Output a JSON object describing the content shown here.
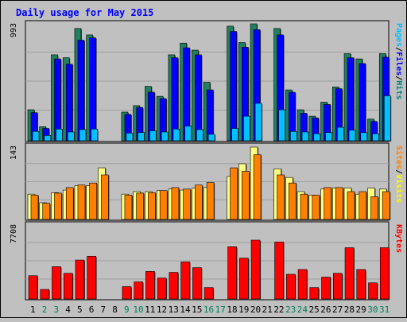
{
  "chart_data": {
    "type": "bar",
    "title": "Daily usage for May 2015",
    "days": [
      "1",
      "2",
      "3",
      "4",
      "5",
      "6",
      "7",
      "8",
      "9",
      "10",
      "11",
      "12",
      "13",
      "14",
      "15",
      "16",
      "17",
      "18",
      "19",
      "20",
      "21",
      "22",
      "23",
      "24",
      "25",
      "26",
      "27",
      "28",
      "29",
      "30",
      "31"
    ],
    "weekend_days": [
      "2",
      "3",
      "9",
      "10",
      "16",
      "17",
      "23",
      "24",
      "30",
      "31"
    ],
    "top_panel": {
      "ymax_label": "993",
      "ymax": 993,
      "legend": [
        {
          "text": "Pages",
          "color": "#00c0ff"
        },
        {
          "text": "/",
          "color": "#000000"
        },
        {
          "text": "Files",
          "color": "#0000ff"
        },
        {
          "text": "/",
          "color": "#000000"
        },
        {
          "text": "Hits",
          "color": "#008080"
        }
      ],
      "series": [
        {
          "name": "Hits",
          "color": "#208060",
          "values": [
            265,
            120,
            735,
            710,
            960,
            905,
            0,
            0,
            245,
            300,
            465,
            380,
            735,
            835,
            775,
            500,
            0,
            980,
            840,
            1000,
            0,
            960,
            435,
            265,
            210,
            330,
            460,
            745,
            700,
            185,
            745
          ]
        },
        {
          "name": "Files",
          "color": "#0000ff",
          "values": [
            240,
            105,
            700,
            655,
            860,
            880,
            0,
            0,
            225,
            285,
            415,
            360,
            710,
            795,
            735,
            435,
            0,
            935,
            800,
            950,
            0,
            905,
            415,
            235,
            195,
            310,
            445,
            710,
            660,
            165,
            715
          ]
        },
        {
          "name": "Pages",
          "color": "#00c0ff",
          "values": [
            80,
            45,
            100,
            75,
            95,
            100,
            0,
            0,
            65,
            70,
            85,
            75,
            100,
            125,
            95,
            55,
            0,
            105,
            210,
            320,
            0,
            265,
            80,
            75,
            60,
            70,
            115,
            90,
            70,
            60,
            385
          ]
        }
      ]
    },
    "middle_panel": {
      "ymax_label": "143",
      "ymax": 143,
      "legend": [
        {
          "text": "Sites",
          "color": "#ff8000"
        },
        {
          "text": "/",
          "color": "#000000"
        },
        {
          "text": "Visits",
          "color": "#ffff00"
        }
      ],
      "series": [
        {
          "name": "Visits",
          "color": "#ffff80",
          "values": [
            50,
            33,
            53,
            58,
            67,
            67,
            102,
            0,
            50,
            55,
            55,
            57,
            60,
            58,
            62,
            63,
            0,
            85,
            110,
            143,
            0,
            100,
            83,
            55,
            48,
            60,
            62,
            62,
            50,
            62,
            60
          ]
        },
        {
          "name": "Sites",
          "color": "#ff8000",
          "values": [
            48,
            32,
            52,
            63,
            68,
            72,
            88,
            0,
            48,
            52,
            53,
            57,
            63,
            60,
            68,
            73,
            0,
            102,
            95,
            128,
            0,
            88,
            72,
            50,
            48,
            63,
            63,
            55,
            55,
            45,
            55
          ]
        }
      ]
    },
    "bottom_panel": {
      "ymax_label": "7708",
      "ymax": 7708,
      "legend": [
        {
          "text": "KBytes",
          "color": "#ff0000"
        }
      ],
      "series": [
        {
          "name": "KBytes",
          "color": "#ff0000",
          "values": [
            2450,
            1000,
            3400,
            2700,
            4100,
            4500,
            0,
            0,
            1300,
            1800,
            2900,
            2200,
            2800,
            3900,
            3300,
            1200,
            0,
            5500,
            4300,
            6200,
            0,
            6000,
            2600,
            3100,
            1200,
            2300,
            2700,
            5400,
            3100,
            1700,
            5400
          ]
        }
      ]
    }
  }
}
